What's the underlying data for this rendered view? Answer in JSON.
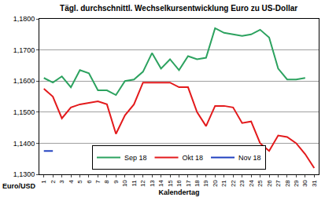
{
  "chart_data": {
    "type": "line",
    "title": "Tägl. durchschnittl. Wechselkursentwicklung Euro zu US-Dollar",
    "x_label": "Kalendertag",
    "y_label": "Euro/USD",
    "x": [
      1,
      2,
      3,
      4,
      5,
      6,
      7,
      8,
      9,
      10,
      11,
      12,
      13,
      14,
      15,
      16,
      17,
      18,
      19,
      20,
      21,
      22,
      23,
      24,
      25,
      26,
      27,
      28,
      29,
      30,
      31
    ],
    "series": [
      {
        "name": "Sep 18",
        "color": "#2ca25f",
        "values": [
          1.161,
          1.1595,
          1.1615,
          1.158,
          1.1635,
          1.1625,
          1.157,
          1.157,
          1.1555,
          1.16,
          1.1605,
          1.163,
          1.169,
          1.164,
          1.167,
          1.1635,
          1.168,
          1.167,
          1.1675,
          1.177,
          1.1755,
          1.175,
          1.1745,
          1.175,
          1.1765,
          1.174,
          1.164,
          1.1605,
          1.1605,
          1.161,
          null
        ]
      },
      {
        "name": "Okt 18",
        "color": "#e31a1c",
        "values": [
          1.1575,
          1.155,
          1.148,
          1.1515,
          1.1525,
          1.153,
          1.1535,
          1.1525,
          1.143,
          1.149,
          1.1525,
          1.1595,
          1.1595,
          1.1595,
          1.1595,
          1.158,
          1.158,
          1.15,
          1.1455,
          1.152,
          1.152,
          1.1515,
          1.1465,
          1.147,
          1.14,
          1.1375,
          1.1425,
          1.142,
          1.14,
          1.1365,
          1.132
        ]
      },
      {
        "name": "Nov 18",
        "color": "#1f3fbf",
        "values": [
          1.1375,
          1.1375,
          null,
          null,
          null,
          null,
          null,
          null,
          null,
          null,
          null,
          null,
          null,
          null,
          null,
          null,
          null,
          null,
          null,
          null,
          null,
          null,
          null,
          null,
          null,
          null,
          null,
          null,
          null,
          null,
          null
        ]
      }
    ],
    "xlim": [
      0.5,
      31.5
    ],
    "xticks": [
      1,
      2,
      3,
      4,
      5,
      6,
      7,
      8,
      9,
      10,
      11,
      12,
      13,
      14,
      15,
      16,
      17,
      18,
      19,
      20,
      21,
      22,
      23,
      24,
      25,
      26,
      27,
      28,
      29,
      30,
      31
    ],
    "ylim": [
      1.13,
      1.18
    ],
    "yticks": [
      {
        "value": 1.13,
        "label": "1,1300"
      },
      {
        "value": 1.14,
        "label": "1,1400"
      },
      {
        "value": 1.15,
        "label": "1,1500"
      },
      {
        "value": 1.16,
        "label": "1,1600"
      },
      {
        "value": 1.17,
        "label": "1,1700"
      },
      {
        "value": 1.18,
        "label": "1,1800"
      }
    ],
    "grid": true,
    "legend": "bottom"
  }
}
